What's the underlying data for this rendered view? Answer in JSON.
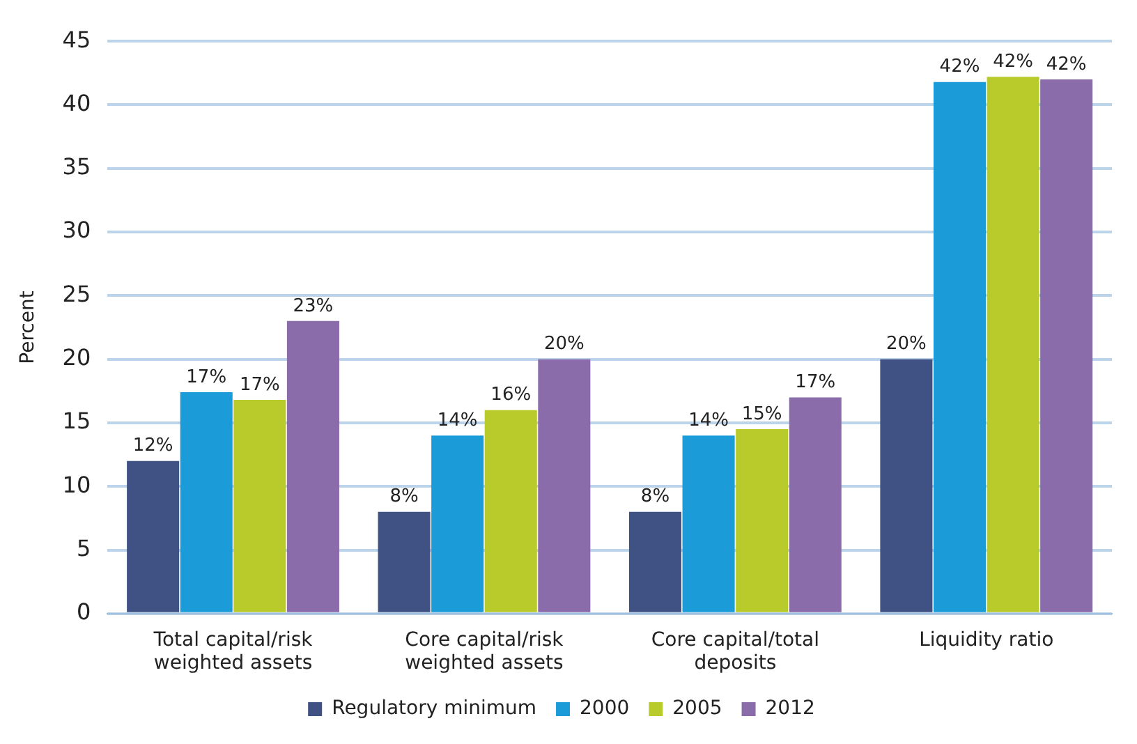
{
  "chart_data": {
    "type": "bar",
    "ylabel": "Percent",
    "categories": [
      "Total capital/risk weighted assets",
      "Core capital/risk weighted assets",
      "Core capital/total deposits",
      "Liquidity ratio"
    ],
    "series": [
      {
        "name": "Regulatory minimum",
        "color": "#3f5283",
        "values": [
          12,
          8,
          8,
          20
        ],
        "value_labels": [
          "12%",
          "8%",
          "8%",
          "20%"
        ]
      },
      {
        "name": "2000",
        "color": "#1b9bd7",
        "values": [
          17.4,
          14,
          14,
          41.8
        ],
        "value_labels": [
          "17%",
          "14%",
          "14%",
          "42%"
        ]
      },
      {
        "name": "2005",
        "color": "#b9ca2b",
        "values": [
          16.8,
          16,
          14.5,
          42.2
        ],
        "value_labels": [
          "17%",
          "16%",
          "15%",
          "42%"
        ]
      },
      {
        "name": "2012",
        "color": "#8b6cab",
        "values": [
          23,
          20,
          17,
          42
        ],
        "value_labels": [
          "23%",
          "20%",
          "17%",
          "42%"
        ]
      }
    ],
    "ylim": [
      0,
      45
    ],
    "yticks": [
      0,
      5,
      10,
      15,
      20,
      25,
      30,
      35,
      40,
      45
    ],
    "grid": "y",
    "legend": "bottom"
  }
}
